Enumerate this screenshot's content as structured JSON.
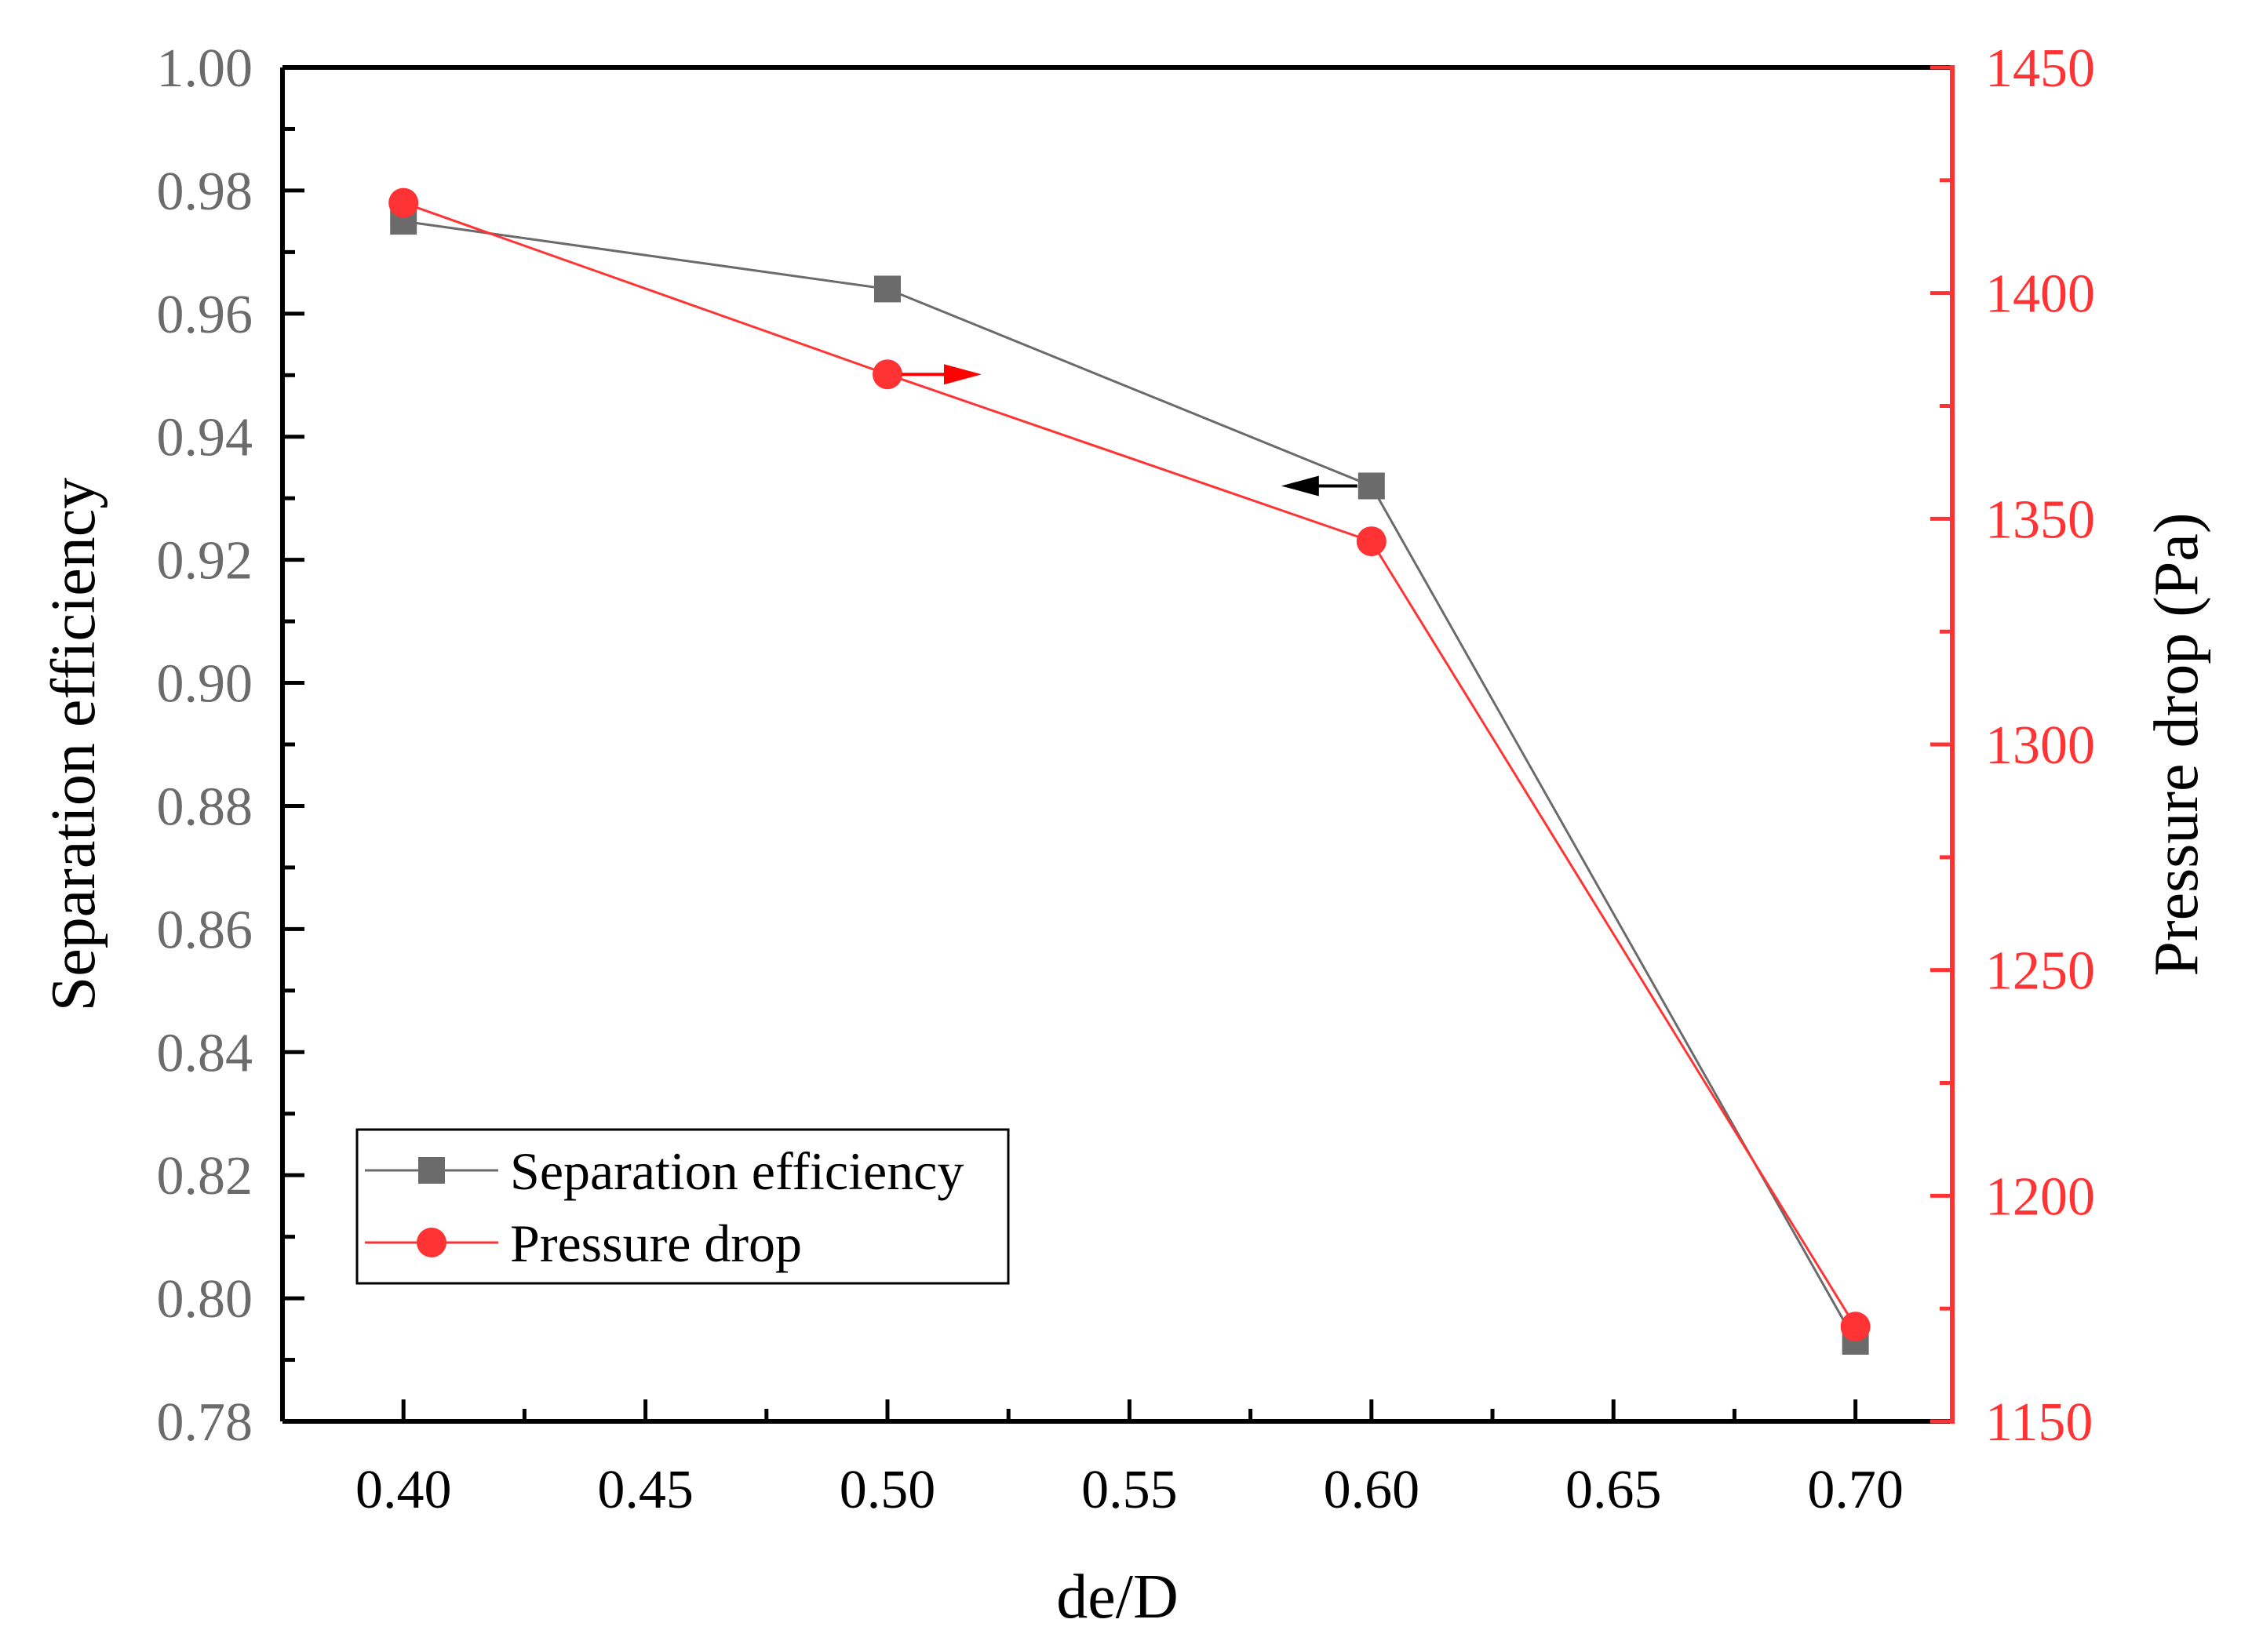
{
  "chart_data": {
    "type": "line",
    "title": "",
    "xlabel": "de/D",
    "ylabel_left": "Separation efficiency",
    "ylabel_right": "Pressure drop (Pa)",
    "xlim": [
      0.375,
      0.72
    ],
    "ylim_left": [
      0.78,
      1.0
    ],
    "ylim_right": [
      1150,
      1450
    ],
    "x_ticks": [
      "0.40",
      "0.45",
      "0.50",
      "0.55",
      "0.60",
      "0.65",
      "0.70"
    ],
    "y_left_ticks": [
      "0.78",
      "0.80",
      "0.82",
      "0.84",
      "0.86",
      "0.88",
      "0.90",
      "0.92",
      "0.94",
      "0.96",
      "0.98",
      "1.00"
    ],
    "y_right_ticks": [
      "1150",
      "1200",
      "1250",
      "1300",
      "1350",
      "1400",
      "1450"
    ],
    "grid": false,
    "legend_position": "bottom-left",
    "series": [
      {
        "name": "Separation efficiency",
        "axis": "left",
        "marker": "square",
        "color": "#6b6b6b",
        "x": [
          0.4,
          0.5,
          0.6,
          0.7
        ],
        "values": [
          0.975,
          0.964,
          0.932,
          0.793
        ]
      },
      {
        "name": "Pressure drop",
        "axis": "right",
        "marker": "circle",
        "color": "#ff3333",
        "x": [
          0.4,
          0.5,
          0.6,
          0.7
        ],
        "values": [
          1420,
          1382,
          1345,
          1171
        ]
      }
    ],
    "annotations": [
      {
        "type": "arrow",
        "direction": "left",
        "series": "Separation efficiency",
        "anchor_x": 0.6,
        "color": "#000000"
      },
      {
        "type": "arrow",
        "direction": "right",
        "series": "Pressure drop",
        "anchor_x": 0.5,
        "color": "#ff0000"
      }
    ]
  }
}
